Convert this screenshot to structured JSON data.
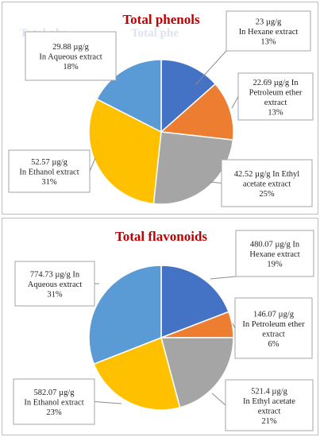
{
  "chart_data": [
    {
      "type": "pie",
      "title": "Total phenols",
      "ghost_text": {
        "left": "Total phe",
        "center": "Total phe"
      },
      "categories": [
        "In Hexane extract",
        "In Petroleum ether extract",
        "In Ethyl acetate extract",
        "In Ethanol extract",
        "In Aqueous extract"
      ],
      "values": [
        23,
        22.69,
        42.52,
        52.57,
        29.88
      ],
      "percentages": [
        "13%",
        "13%",
        "25%",
        "31%",
        "18%"
      ],
      "colors": [
        "#4472c4",
        "#ed7d31",
        "#a5a5a5",
        "#ffc000",
        "#5b9bd5"
      ],
      "labels": [
        [
          "23 µg/g",
          "In Hexane extract",
          "13%"
        ],
        [
          "22.69 µg/g In",
          "Petroleum ether",
          "extract",
          "13%"
        ],
        [
          "42.52 µg/g In Ethyl",
          "acetate extract",
          "25%"
        ],
        [
          "52.57 µg/g",
          "In Ethanol extract",
          "31%"
        ],
        [
          "29.88 µg/g",
          "In Aqueous extract",
          "18%"
        ]
      ]
    },
    {
      "type": "pie",
      "title": "Total flavonoids",
      "categories": [
        "In Hexane extract",
        "In Petroleum ether extract",
        "In Ethyl acetate extract",
        "In Ethanol extract",
        "In Aqueous extract"
      ],
      "values": [
        480.07,
        146.07,
        521.4,
        582.07,
        774.73
      ],
      "percentages": [
        "19%",
        "6%",
        "21%",
        "23%",
        "31%"
      ],
      "colors": [
        "#4472c4",
        "#ed7d31",
        "#a5a5a5",
        "#ffc000",
        "#5b9bd5"
      ],
      "labels": [
        [
          "480.07 µg/g In",
          "Hexane extract",
          "19%"
        ],
        [
          "146.07 µg/g",
          "In Petroleum ether",
          "extract",
          "6%"
        ],
        [
          "521.4 µg/g",
          "In Ethyl acetate",
          "extract",
          "21%"
        ],
        [
          "582.07 µg/g",
          "In Ethanol extract",
          "23%"
        ],
        [
          "774.73 µg/g In",
          "Aqueous extract",
          "31%"
        ]
      ]
    }
  ]
}
